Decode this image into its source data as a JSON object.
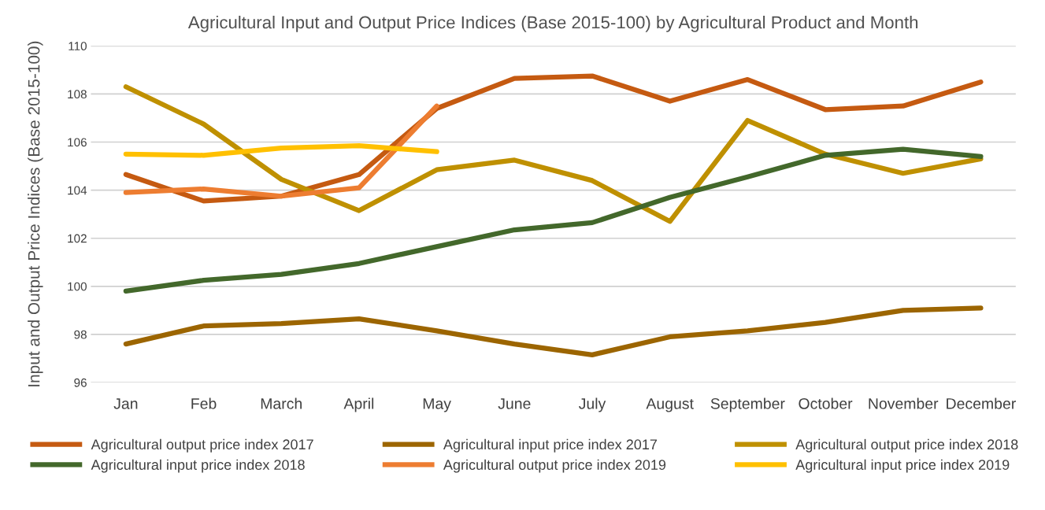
{
  "chart_data": {
    "type": "line",
    "title": "Agricultural Input and Output Price Indices (Base 2015-100) by Agricultural Product and Month",
    "ylabel": "Input and Output Price Indices (Base 2015-100)",
    "categories": [
      "Jan",
      "Feb",
      "March",
      "April",
      "May",
      "June",
      "July",
      "August",
      "September",
      "October",
      "November",
      "December"
    ],
    "series": [
      {
        "name": "Agricultural output price index 2017",
        "color": "#c55a11",
        "values": [
          104.65,
          103.55,
          103.75,
          104.65,
          107.4,
          108.65,
          108.75,
          107.7,
          108.6,
          107.35,
          107.5,
          108.5
        ]
      },
      {
        "name": "Agricultural input price index 2017",
        "color": "#9c6500",
        "values": [
          97.6,
          98.35,
          98.45,
          98.65,
          98.15,
          97.6,
          97.15,
          97.9,
          98.15,
          98.5,
          99.0,
          99.1
        ]
      },
      {
        "name": "Agricultural output price index 2018",
        "color": "#bf9000",
        "values": [
          108.3,
          106.75,
          104.45,
          103.15,
          104.85,
          105.25,
          104.4,
          102.7,
          106.9,
          105.5,
          104.7,
          105.3
        ]
      },
      {
        "name": "Agricultural input price index 2018",
        "color": "#43682b",
        "values": [
          99.8,
          100.25,
          100.5,
          100.95,
          101.65,
          102.35,
          102.65,
          103.7,
          104.55,
          105.45,
          105.7,
          105.4
        ]
      },
      {
        "name": "Agricultural output price index 2019",
        "color": "#ed7d31",
        "values": [
          103.9,
          104.05,
          103.75,
          104.1,
          107.5,
          null,
          null,
          null,
          null,
          null,
          null,
          null
        ]
      },
      {
        "name": "Agricultural input price index 2019",
        "color": "#ffc000",
        "values": [
          105.5,
          105.45,
          105.75,
          105.85,
          105.6,
          null,
          null,
          null,
          null,
          null,
          null,
          null
        ]
      }
    ],
    "ylim": [
      96,
      110
    ],
    "yticks": [
      96,
      98,
      100,
      102,
      104,
      106,
      108,
      110
    ],
    "grid": "y",
    "legend": "bottom",
    "marker": "none",
    "line_style": "solid"
  }
}
